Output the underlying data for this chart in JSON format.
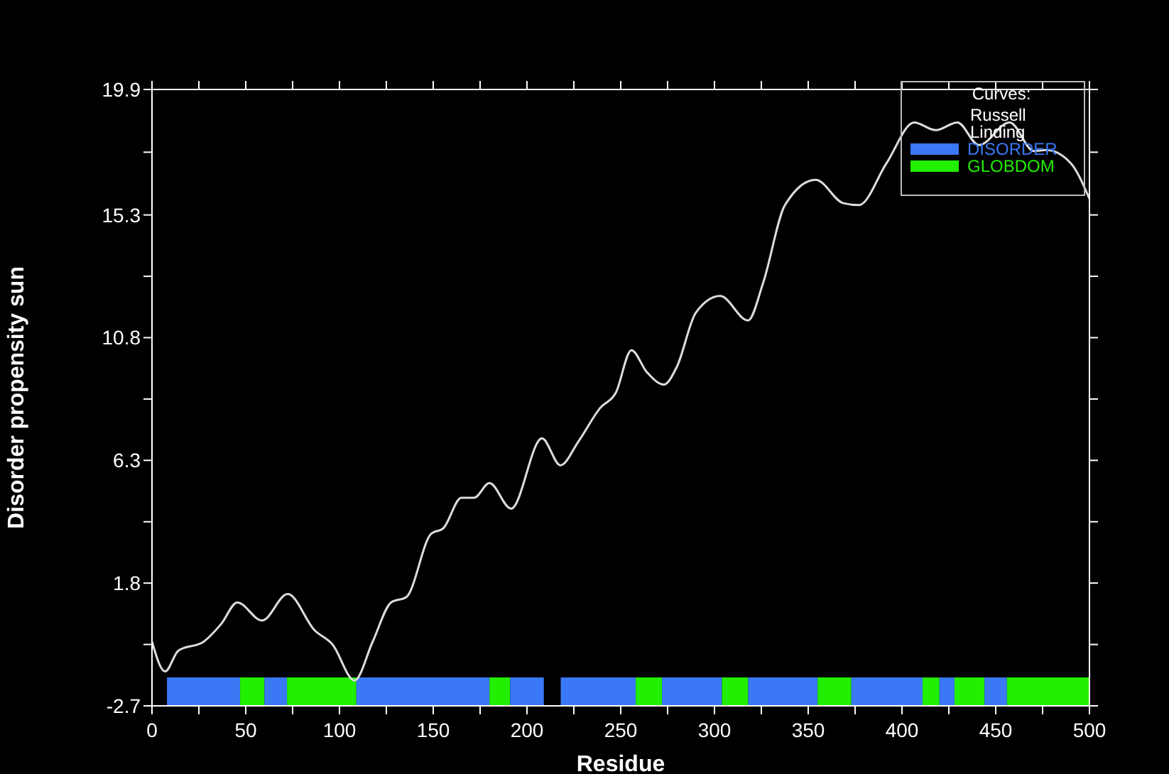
{
  "chart_data": {
    "type": "line",
    "xlabel": "Residue",
    "ylabel": "Disorder propensity sun",
    "legend_title": "Curves:",
    "legend": "top right",
    "grid": false,
    "xlim": [
      0,
      500
    ],
    "xticks": [
      0,
      {
        "value": 25,
        "label": null
      },
      50,
      {
        "value": 75,
        "label": null
      },
      100,
      {
        "value": 125,
        "label": null
      },
      150,
      {
        "value": 175,
        "label": null
      },
      200,
      {
        "value": 225,
        "label": null
      },
      250,
      {
        "value": 275,
        "label": null
      },
      300,
      {
        "value": 325,
        "label": null
      },
      350,
      {
        "value": 375,
        "label": null
      },
      400,
      {
        "value": 425,
        "label": null
      },
      450,
      {
        "value": 475,
        "label": null
      },
      500
    ],
    "ylim": [
      -2.7,
      19.9
    ],
    "yticks": [
      -2.7,
      {
        "value": -0.45,
        "label": null
      },
      1.8,
      {
        "value": 4.05,
        "label": null
      },
      6.3,
      {
        "value": 8.55,
        "label": null
      },
      10.8,
      {
        "value": 13.05,
        "label": null
      },
      15.3,
      {
        "value": 17.6,
        "label": null
      },
      19.9
    ],
    "series": [
      {
        "name": "Russell Linding",
        "color": "#dcdcdc",
        "x": [
          0,
          7,
          14,
          27.5,
          37,
          45.5,
          58.7,
          72.4,
          86.6,
          96.4,
          108,
          117.7,
          127.5,
          135.7,
          148.8,
          155.5,
          165,
          171.8,
          180,
          191.5,
          208,
          217.8,
          227.6,
          239,
          247.4,
          255.7,
          263.9,
          273,
          280,
          290,
          303,
          317.9,
          326,
          337.6,
          354,
          368.7,
          377,
          391.8,
          406.5,
          418,
          429.6,
          441,
          457.4,
          470.5,
          477,
          490,
          500
        ],
        "values": [
          -0.35,
          -1.44,
          -0.68,
          -0.35,
          0.31,
          1.09,
          0.43,
          1.4,
          0.08,
          -0.46,
          -1.77,
          -0.35,
          1.09,
          1.29,
          3.6,
          3.82,
          4.93,
          4.93,
          5.47,
          4.53,
          7.11,
          6.12,
          7.01,
          8.22,
          8.78,
          10.34,
          9.54,
          9.08,
          9.74,
          11.71,
          12.33,
          11.43,
          12.82,
          15.66,
          16.59,
          15.73,
          15.66,
          17.2,
          18.69,
          18.41,
          18.69,
          17.86,
          18.69,
          17.64,
          17.68,
          17.2,
          15.89
        ]
      }
    ],
    "bands": [
      {
        "axis": "x",
        "from": 8,
        "to": 47,
        "label": "DISORDER",
        "color": "#3a78f5"
      },
      {
        "axis": "x",
        "from": 47,
        "to": 60,
        "label": "GLOBDOM",
        "color": "#22ee00"
      },
      {
        "axis": "x",
        "from": 60,
        "to": 72,
        "color": "#3a78f5"
      },
      {
        "axis": "x",
        "from": 72,
        "to": 109,
        "color": "#22ee00"
      },
      {
        "axis": "x",
        "from": 109,
        "to": 180,
        "color": "#3a78f5"
      },
      {
        "axis": "x",
        "from": 180,
        "to": 191,
        "color": "#22ee00"
      },
      {
        "axis": "x",
        "from": 191,
        "to": 209,
        "color": "#3a78f5"
      },
      {
        "axis": "x",
        "from": 218,
        "to": 258,
        "color": "#3a78f5"
      },
      {
        "axis": "x",
        "from": 258,
        "to": 272,
        "color": "#22ee00"
      },
      {
        "axis": "x",
        "from": 272,
        "to": 304,
        "color": "#3a78f5"
      },
      {
        "axis": "x",
        "from": 304,
        "to": 318,
        "color": "#22ee00"
      },
      {
        "axis": "x",
        "from": 318,
        "to": 355,
        "color": "#3a78f5"
      },
      {
        "axis": "x",
        "from": 355,
        "to": 373,
        "color": "#22ee00"
      },
      {
        "axis": "x",
        "from": 373,
        "to": 411,
        "color": "#3a78f5"
      },
      {
        "axis": "x",
        "from": 411,
        "to": 420,
        "color": "#22ee00"
      },
      {
        "axis": "x",
        "from": 420,
        "to": 428,
        "color": "#3a78f5"
      },
      {
        "axis": "x",
        "from": 428,
        "to": 444,
        "color": "#22ee00"
      },
      {
        "axis": "x",
        "from": 444,
        "to": 456,
        "color": "#3a78f5"
      },
      {
        "axis": "x",
        "from": 456,
        "to": 500,
        "color": "#22ee00"
      }
    ]
  }
}
